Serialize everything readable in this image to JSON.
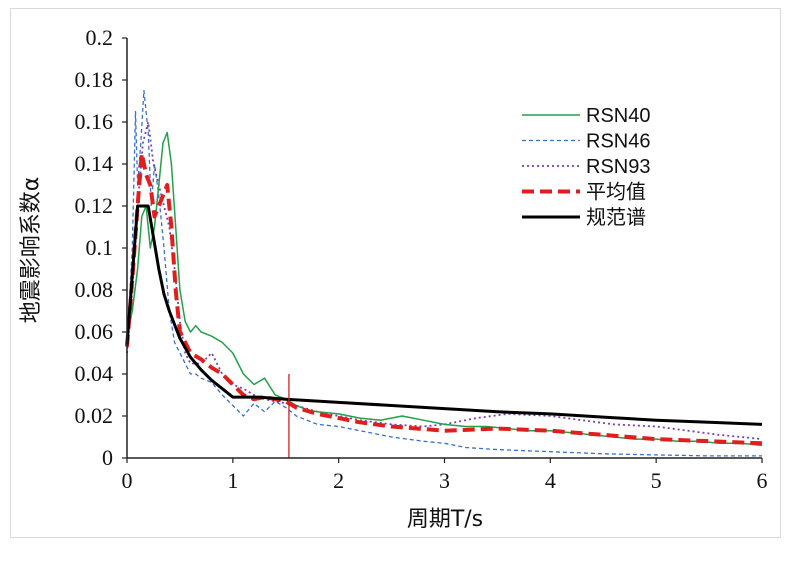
{
  "chart_data": {
    "type": "line",
    "xlabel": "周期T/s",
    "ylabel": "地震影响系数α",
    "xlim": [
      0,
      6
    ],
    "ylim": [
      0,
      0.2
    ],
    "xticks": [
      "0",
      "1",
      "2",
      "3",
      "4",
      "5",
      "6"
    ],
    "yticks": [
      "0",
      "0.02",
      "0.04",
      "0.06",
      "0.08",
      "0.1",
      "0.12",
      "0.14",
      "0.16",
      "0.18",
      "0.2"
    ],
    "grid": false,
    "legend_position": "top-right",
    "vline": {
      "x": 1.53,
      "y_top": 0.04,
      "color": "#cc2222"
    },
    "series": [
      {
        "name": "RSN40",
        "color": "#22a04a",
        "dash": "solid",
        "width": 1.5,
        "x": [
          0,
          0.05,
          0.1,
          0.14,
          0.18,
          0.22,
          0.26,
          0.3,
          0.34,
          0.38,
          0.42,
          0.46,
          0.5,
          0.55,
          0.6,
          0.65,
          0.7,
          0.8,
          0.9,
          1.0,
          1.1,
          1.2,
          1.3,
          1.4,
          1.5,
          1.6,
          1.7,
          1.8,
          2.0,
          2.2,
          2.4,
          2.6,
          2.8,
          3.0,
          3.2,
          3.4,
          3.6,
          3.8,
          4.0,
          4.2,
          4.4,
          4.6,
          4.8,
          5.0,
          5.2,
          5.4,
          5.6,
          5.8,
          6.0
        ],
        "y": [
          0.058,
          0.07,
          0.09,
          0.115,
          0.12,
          0.1,
          0.11,
          0.13,
          0.15,
          0.155,
          0.14,
          0.11,
          0.08,
          0.065,
          0.06,
          0.063,
          0.06,
          0.058,
          0.055,
          0.05,
          0.04,
          0.035,
          0.038,
          0.03,
          0.028,
          0.025,
          0.023,
          0.022,
          0.021,
          0.019,
          0.018,
          0.02,
          0.018,
          0.016,
          0.015,
          0.015,
          0.014,
          0.013,
          0.013,
          0.012,
          0.011,
          0.01,
          0.009,
          0.009,
          0.008,
          0.008,
          0.007,
          0.007,
          0.006
        ]
      },
      {
        "name": "RSN46",
        "color": "#3a6fd0",
        "dash": "4,3",
        "width": 1.3,
        "x": [
          0,
          0.05,
          0.08,
          0.1,
          0.13,
          0.16,
          0.18,
          0.2,
          0.23,
          0.26,
          0.3,
          0.35,
          0.4,
          0.45,
          0.5,
          0.55,
          0.6,
          0.65,
          0.7,
          0.8,
          0.9,
          1.0,
          1.1,
          1.2,
          1.3,
          1.4,
          1.5,
          1.6,
          1.8,
          2.0,
          2.2,
          2.5,
          2.8,
          3.0,
          3.2,
          3.5,
          4.0,
          4.5,
          5.0,
          5.5,
          6.0
        ],
        "y": [
          0.055,
          0.1,
          0.165,
          0.13,
          0.15,
          0.175,
          0.165,
          0.155,
          0.12,
          0.14,
          0.125,
          0.1,
          0.07,
          0.055,
          0.05,
          0.045,
          0.04,
          0.04,
          0.038,
          0.036,
          0.03,
          0.025,
          0.02,
          0.026,
          0.022,
          0.027,
          0.024,
          0.02,
          0.016,
          0.015,
          0.013,
          0.01,
          0.008,
          0.007,
          0.005,
          0.004,
          0.003,
          0.002,
          0.0015,
          0.001,
          0.001
        ]
      },
      {
        "name": "RSN93",
        "color": "#7a3fb5",
        "dash": "2,3",
        "width": 1.8,
        "x": [
          0,
          0.05,
          0.1,
          0.15,
          0.2,
          0.25,
          0.3,
          0.35,
          0.4,
          0.45,
          0.5,
          0.55,
          0.6,
          0.7,
          0.8,
          0.9,
          1.0,
          1.1,
          1.2,
          1.3,
          1.4,
          1.6,
          1.8,
          2.0,
          2.2,
          2.5,
          2.8,
          3.0,
          3.3,
          3.6,
          4.0,
          4.3,
          4.6,
          5.0,
          5.3,
          5.6,
          6.0
        ],
        "y": [
          0.05,
          0.08,
          0.12,
          0.15,
          0.16,
          0.14,
          0.13,
          0.12,
          0.11,
          0.09,
          0.065,
          0.05,
          0.045,
          0.045,
          0.05,
          0.04,
          0.035,
          0.033,
          0.03,
          0.028,
          0.027,
          0.025,
          0.022,
          0.02,
          0.018,
          0.016,
          0.015,
          0.016,
          0.019,
          0.021,
          0.02,
          0.018,
          0.016,
          0.015,
          0.013,
          0.011,
          0.009
        ]
      },
      {
        "name": "平均值",
        "color": "#e01e1e",
        "dash": "12,6",
        "width": 4,
        "x": [
          0,
          0.05,
          0.1,
          0.14,
          0.18,
          0.22,
          0.26,
          0.3,
          0.34,
          0.38,
          0.42,
          0.46,
          0.5,
          0.6,
          0.7,
          0.8,
          0.9,
          1.0,
          1.1,
          1.2,
          1.3,
          1.4,
          1.5,
          1.6,
          1.8,
          2.0,
          2.2,
          2.5,
          3.0,
          3.5,
          4.0,
          4.5,
          5.0,
          5.5,
          6.0
        ],
        "y": [
          0.053,
          0.085,
          0.12,
          0.145,
          0.135,
          0.13,
          0.115,
          0.12,
          0.125,
          0.13,
          0.11,
          0.08,
          0.06,
          0.05,
          0.047,
          0.043,
          0.04,
          0.035,
          0.03,
          0.028,
          0.029,
          0.028,
          0.027,
          0.024,
          0.021,
          0.019,
          0.017,
          0.015,
          0.013,
          0.014,
          0.013,
          0.011,
          0.009,
          0.008,
          0.007
        ]
      },
      {
        "name": "规范谱",
        "color": "#000000",
        "dash": "solid",
        "width": 3,
        "x": [
          0,
          0.1,
          0.2,
          0.25,
          0.3,
          0.35,
          0.4,
          0.5,
          0.6,
          0.7,
          0.8,
          0.9,
          1.0,
          1.25,
          1.5,
          2.0,
          2.5,
          3.0,
          3.5,
          4.0,
          4.5,
          5.0,
          5.5,
          6.0
        ],
        "y": [
          0.054,
          0.12,
          0.12,
          0.105,
          0.09,
          0.078,
          0.07,
          0.057,
          0.048,
          0.042,
          0.037,
          0.033,
          0.029,
          0.029,
          0.028,
          0.0265,
          0.025,
          0.0235,
          0.022,
          0.021,
          0.0195,
          0.018,
          0.017,
          0.016
        ]
      }
    ]
  }
}
